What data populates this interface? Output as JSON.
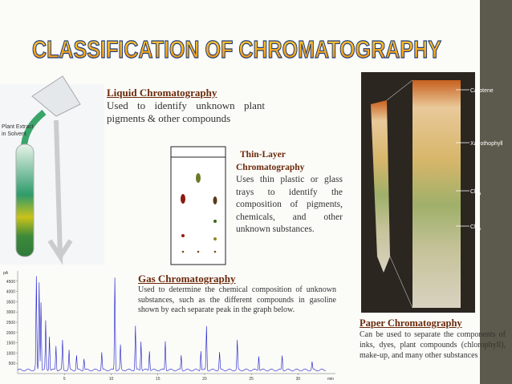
{
  "title": "CLASSIFICATION OF CHROMATOGRAPHY",
  "liquid": {
    "heading": "Liquid Chromatography",
    "body": "Used to identify unknown plant pigments & other compounds",
    "image_label": [
      "Plant Extract",
      "in Solvent"
    ]
  },
  "thin_layer": {
    "heading": [
      "Thin-Layer",
      "Chromatography"
    ],
    "body": "Uses thin plastic or glass trays to identify the composition of pigments, chemicals, and other unknown substances."
  },
  "gas": {
    "heading": "Gas Chromatography",
    "body": "Used to determine the chemical composition of unknown substances, such as the different compounds in gasoline shown by each separate peak in the graph below.",
    "graph": {
      "y_unit": "pA",
      "x_unit": "min",
      "yticks": [
        4500,
        4000,
        3500,
        3000,
        2500,
        2000,
        1500,
        1000,
        500
      ],
      "xticks": [
        5,
        10,
        15,
        20,
        25,
        30
      ]
    }
  },
  "paper": {
    "heading": "Paper Chromatography",
    "body": "Can be used to separate the components of inks, dyes, plant compounds (chlorophyll), make-up, and many other substances",
    "photo_labels": [
      {
        "text": "Carotene"
      },
      {
        "text": "Xanothophyll"
      },
      {
        "text": "Chl",
        "sub": "a"
      },
      {
        "text": "Chl",
        "sub": "b"
      }
    ]
  }
}
